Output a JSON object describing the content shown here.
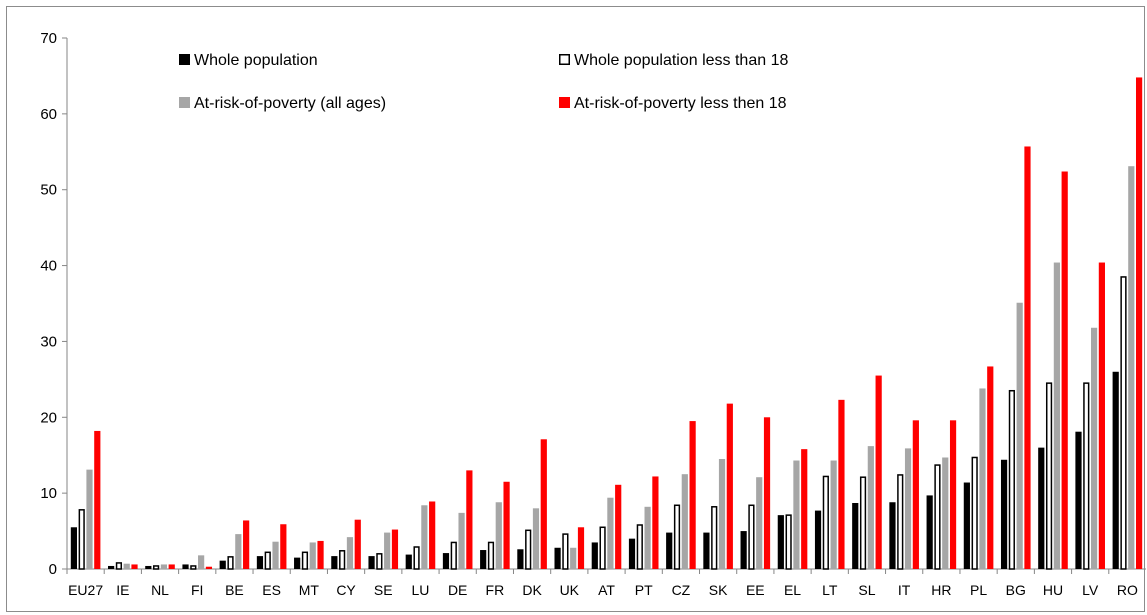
{
  "chart_data": {
    "type": "bar",
    "title": "",
    "xlabel": "",
    "ylabel": "",
    "ylim": [
      0,
      70
    ],
    "yticks": [
      0,
      10,
      20,
      30,
      40,
      50,
      60,
      70
    ],
    "grid": false,
    "legend_position": "top-left inside plot",
    "categories": [
      "EU27",
      "IE",
      "NL",
      "FI",
      "BE",
      "ES",
      "MT",
      "CY",
      "SE",
      "LU",
      "DE",
      "FR",
      "DK",
      "UK",
      "AT",
      "PT",
      "CZ",
      "SK",
      "EE",
      "EL",
      "LT",
      "SL",
      "IT",
      "HR",
      "PL",
      "BG",
      "HU",
      "LV",
      "RO"
    ],
    "series": [
      {
        "name": "Whole population",
        "color": "#000000",
        "style": "filled",
        "values": [
          5.5,
          0.4,
          0.4,
          0.6,
          1.1,
          1.7,
          1.5,
          1.7,
          1.7,
          1.9,
          2.1,
          2.5,
          2.6,
          2.8,
          3.5,
          4.0,
          4.8,
          4.8,
          5.0,
          7.1,
          7.7,
          8.7,
          8.8,
          9.7,
          11.4,
          14.4,
          16.0,
          18.1,
          26.0
        ]
      },
      {
        "name": "Whole population less than 18",
        "color": "#000000",
        "style": "outline",
        "values": [
          7.9,
          0.9,
          0.5,
          0.5,
          1.7,
          2.3,
          2.3,
          2.5,
          2.1,
          3.0,
          3.6,
          3.6,
          5.2,
          4.7,
          5.6,
          5.9,
          8.5,
          8.3,
          8.5,
          7.2,
          12.3,
          12.2,
          12.5,
          13.8,
          14.8,
          23.6,
          24.6,
          24.6,
          38.6
        ]
      },
      {
        "name": "At-risk-of-poverty (all ages)",
        "color": "#a6a6a6",
        "style": "filled",
        "values": [
          13.1,
          0.7,
          0.6,
          1.8,
          4.6,
          3.6,
          3.5,
          4.2,
          4.8,
          8.4,
          7.4,
          8.8,
          8.0,
          2.8,
          9.4,
          8.2,
          12.5,
          14.5,
          12.1,
          14.3,
          14.3,
          16.2,
          15.9,
          14.7,
          23.8,
          35.1,
          40.4,
          31.8,
          53.1
        ]
      },
      {
        "name": "At-risk-of-poverty less then 18",
        "color": "#ff0000",
        "style": "filled",
        "values": [
          18.2,
          0.6,
          0.6,
          0.3,
          6.4,
          5.9,
          3.7,
          6.5,
          5.2,
          8.9,
          13.0,
          11.5,
          17.1,
          5.5,
          11.1,
          12.2,
          19.5,
          21.8,
          20.0,
          15.8,
          22.3,
          25.5,
          19.6,
          19.6,
          26.7,
          55.7,
          52.4,
          40.4,
          64.8
        ]
      }
    ]
  }
}
